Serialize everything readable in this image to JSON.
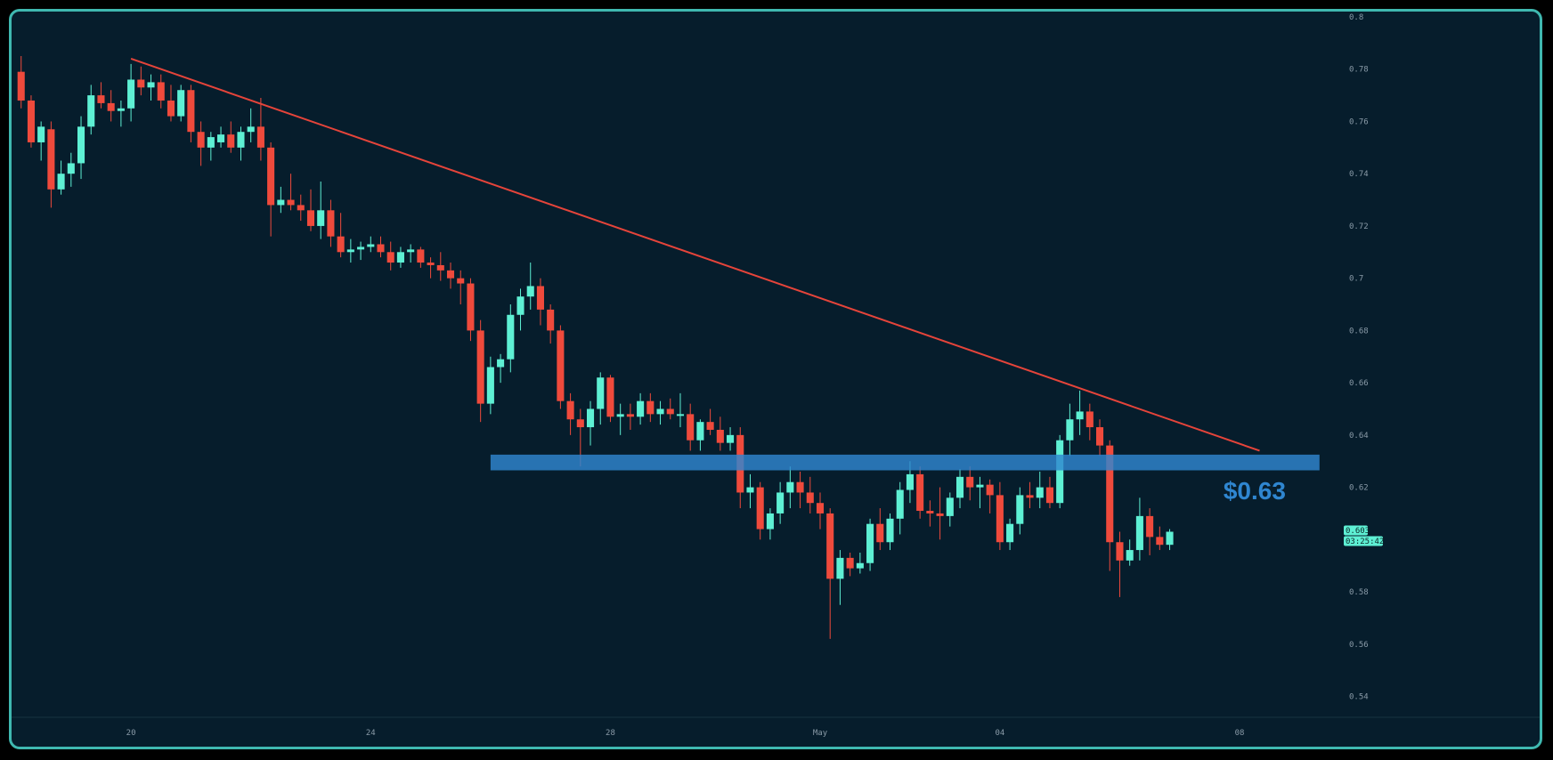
{
  "chart_data": {
    "type": "candlestick",
    "y_axis": {
      "ticks": [
        "0.8",
        "0.78",
        "0.76",
        "0.74",
        "0.72",
        "0.7",
        "0.68",
        "0.66",
        "0.64",
        "0.62",
        "0.6",
        "0.58",
        "0.56",
        "0.54"
      ],
      "ylim": [
        0.532,
        0.8
      ]
    },
    "x_axis": {
      "ticks": [
        {
          "label": "20",
          "index": 11
        },
        {
          "label": "24",
          "index": 35
        },
        {
          "label": "28",
          "index": 59
        },
        {
          "label": "May",
          "index": 80
        },
        {
          "label": "04",
          "index": 98
        },
        {
          "label": "08",
          "index": 122
        }
      ],
      "xlim": [
        -0.6,
        131
      ]
    },
    "grid": false,
    "colors": {
      "up": "#5ef0d4",
      "down": "#ef4a3c",
      "background": "#061d2c",
      "trendline": "#e5443a",
      "support": "#2f86d0"
    },
    "candles": [
      [
        0.779,
        0.785,
        0.765,
        0.768
      ],
      [
        0.768,
        0.77,
        0.75,
        0.752
      ],
      [
        0.752,
        0.76,
        0.745,
        0.758
      ],
      [
        0.757,
        0.76,
        0.727,
        0.734
      ],
      [
        0.734,
        0.745,
        0.732,
        0.74
      ],
      [
        0.74,
        0.748,
        0.735,
        0.744
      ],
      [
        0.744,
        0.762,
        0.738,
        0.758
      ],
      [
        0.758,
        0.774,
        0.755,
        0.77
      ],
      [
        0.77,
        0.775,
        0.765,
        0.767
      ],
      [
        0.767,
        0.772,
        0.76,
        0.764
      ],
      [
        0.764,
        0.768,
        0.758,
        0.765
      ],
      [
        0.765,
        0.782,
        0.76,
        0.776
      ],
      [
        0.776,
        0.781,
        0.77,
        0.773
      ],
      [
        0.773,
        0.778,
        0.768,
        0.775
      ],
      [
        0.775,
        0.778,
        0.765,
        0.768
      ],
      [
        0.768,
        0.774,
        0.76,
        0.762
      ],
      [
        0.762,
        0.774,
        0.76,
        0.772
      ],
      [
        0.772,
        0.774,
        0.752,
        0.756
      ],
      [
        0.756,
        0.76,
        0.743,
        0.75
      ],
      [
        0.75,
        0.756,
        0.745,
        0.754
      ],
      [
        0.752,
        0.758,
        0.75,
        0.755
      ],
      [
        0.755,
        0.76,
        0.748,
        0.75
      ],
      [
        0.75,
        0.758,
        0.745,
        0.756
      ],
      [
        0.756,
        0.765,
        0.752,
        0.758
      ],
      [
        0.758,
        0.769,
        0.745,
        0.75
      ],
      [
        0.75,
        0.752,
        0.716,
        0.728
      ],
      [
        0.728,
        0.735,
        0.725,
        0.73
      ],
      [
        0.73,
        0.74,
        0.726,
        0.728
      ],
      [
        0.728,
        0.732,
        0.722,
        0.726
      ],
      [
        0.726,
        0.734,
        0.718,
        0.72
      ],
      [
        0.72,
        0.737,
        0.715,
        0.726
      ],
      [
        0.726,
        0.73,
        0.712,
        0.716
      ],
      [
        0.716,
        0.725,
        0.708,
        0.71
      ],
      [
        0.71,
        0.715,
        0.706,
        0.711
      ],
      [
        0.711,
        0.714,
        0.707,
        0.712
      ],
      [
        0.712,
        0.716,
        0.71,
        0.713
      ],
      [
        0.713,
        0.716,
        0.708,
        0.71
      ],
      [
        0.71,
        0.714,
        0.703,
        0.706
      ],
      [
        0.706,
        0.712,
        0.704,
        0.71
      ],
      [
        0.71,
        0.713,
        0.706,
        0.711
      ],
      [
        0.711,
        0.712,
        0.704,
        0.706
      ],
      [
        0.706,
        0.708,
        0.7,
        0.705
      ],
      [
        0.705,
        0.71,
        0.699,
        0.703
      ],
      [
        0.703,
        0.706,
        0.696,
        0.7
      ],
      [
        0.7,
        0.703,
        0.69,
        0.698
      ],
      [
        0.698,
        0.7,
        0.676,
        0.68
      ],
      [
        0.68,
        0.684,
        0.645,
        0.652
      ],
      [
        0.652,
        0.67,
        0.648,
        0.666
      ],
      [
        0.666,
        0.671,
        0.66,
        0.669
      ],
      [
        0.669,
        0.69,
        0.664,
        0.686
      ],
      [
        0.686,
        0.696,
        0.68,
        0.693
      ],
      [
        0.693,
        0.706,
        0.688,
        0.697
      ],
      [
        0.697,
        0.7,
        0.682,
        0.688
      ],
      [
        0.688,
        0.69,
        0.675,
        0.68
      ],
      [
        0.68,
        0.682,
        0.65,
        0.653
      ],
      [
        0.653,
        0.656,
        0.64,
        0.646
      ],
      [
        0.646,
        0.65,
        0.628,
        0.643
      ],
      [
        0.643,
        0.653,
        0.636,
        0.65
      ],
      [
        0.65,
        0.664,
        0.644,
        0.662
      ],
      [
        0.662,
        0.663,
        0.645,
        0.647
      ],
      [
        0.647,
        0.652,
        0.64,
        0.648
      ],
      [
        0.648,
        0.652,
        0.642,
        0.647
      ],
      [
        0.647,
        0.656,
        0.644,
        0.653
      ],
      [
        0.653,
        0.656,
        0.645,
        0.648
      ],
      [
        0.648,
        0.653,
        0.644,
        0.65
      ],
      [
        0.65,
        0.654,
        0.646,
        0.648
      ],
      [
        0.648,
        0.656,
        0.643,
        0.648
      ],
      [
        0.648,
        0.652,
        0.634,
        0.638
      ],
      [
        0.638,
        0.646,
        0.634,
        0.645
      ],
      [
        0.645,
        0.65,
        0.64,
        0.642
      ],
      [
        0.642,
        0.647,
        0.634,
        0.637
      ],
      [
        0.637,
        0.643,
        0.634,
        0.64
      ],
      [
        0.64,
        0.643,
        0.612,
        0.618
      ],
      [
        0.618,
        0.625,
        0.612,
        0.62
      ],
      [
        0.62,
        0.622,
        0.6,
        0.604
      ],
      [
        0.604,
        0.612,
        0.6,
        0.61
      ],
      [
        0.61,
        0.622,
        0.606,
        0.618
      ],
      [
        0.618,
        0.628,
        0.612,
        0.622
      ],
      [
        0.622,
        0.626,
        0.612,
        0.618
      ],
      [
        0.618,
        0.624,
        0.61,
        0.614
      ],
      [
        0.614,
        0.618,
        0.604,
        0.61
      ],
      [
        0.61,
        0.612,
        0.562,
        0.585
      ],
      [
        0.585,
        0.596,
        0.575,
        0.593
      ],
      [
        0.593,
        0.595,
        0.586,
        0.589
      ],
      [
        0.589,
        0.595,
        0.587,
        0.591
      ],
      [
        0.591,
        0.608,
        0.588,
        0.606
      ],
      [
        0.606,
        0.612,
        0.596,
        0.599
      ],
      [
        0.599,
        0.61,
        0.596,
        0.608
      ],
      [
        0.608,
        0.622,
        0.602,
        0.619
      ],
      [
        0.619,
        0.63,
        0.614,
        0.625
      ],
      [
        0.625,
        0.628,
        0.608,
        0.611
      ],
      [
        0.611,
        0.615,
        0.605,
        0.61
      ],
      [
        0.61,
        0.62,
        0.6,
        0.609
      ],
      [
        0.609,
        0.618,
        0.605,
        0.616
      ],
      [
        0.616,
        0.627,
        0.612,
        0.624
      ],
      [
        0.624,
        0.628,
        0.615,
        0.62
      ],
      [
        0.62,
        0.624,
        0.612,
        0.621
      ],
      [
        0.621,
        0.623,
        0.61,
        0.617
      ],
      [
        0.617,
        0.622,
        0.596,
        0.599
      ],
      [
        0.599,
        0.608,
        0.596,
        0.606
      ],
      [
        0.606,
        0.62,
        0.602,
        0.617
      ],
      [
        0.617,
        0.622,
        0.612,
        0.616
      ],
      [
        0.616,
        0.626,
        0.612,
        0.62
      ],
      [
        0.62,
        0.624,
        0.612,
        0.614
      ],
      [
        0.614,
        0.64,
        0.612,
        0.638
      ],
      [
        0.638,
        0.652,
        0.632,
        0.646
      ],
      [
        0.646,
        0.657,
        0.64,
        0.649
      ],
      [
        0.649,
        0.652,
        0.638,
        0.643
      ],
      [
        0.643,
        0.646,
        0.632,
        0.636
      ],
      [
        0.636,
        0.638,
        0.588,
        0.599
      ],
      [
        0.599,
        0.603,
        0.578,
        0.592
      ],
      [
        0.592,
        0.6,
        0.59,
        0.596
      ],
      [
        0.596,
        0.616,
        0.592,
        0.609
      ],
      [
        0.609,
        0.612,
        0.594,
        0.601
      ],
      [
        0.601,
        0.605,
        0.596,
        0.598
      ],
      [
        0.598,
        0.604,
        0.596,
        0.603
      ]
    ],
    "trendline": {
      "from": [
        11,
        0.784
      ],
      "to": [
        124,
        0.634
      ]
    },
    "support_zone": {
      "from_index": 47,
      "to_index": 130,
      "low": 0.6265,
      "high": 0.6325,
      "label": "$0.63"
    },
    "price_tag": {
      "price": "0.603",
      "timer": "03:25:42"
    }
  }
}
